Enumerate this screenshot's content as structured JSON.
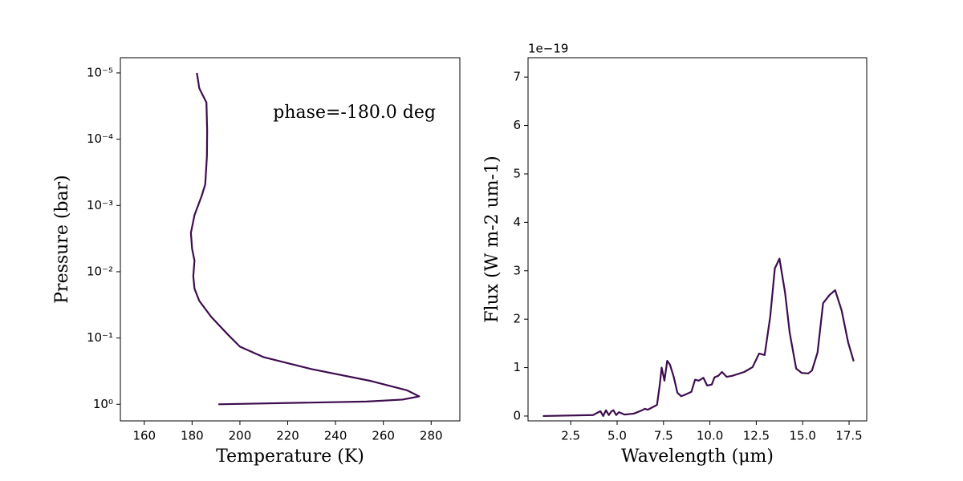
{
  "chart_data": [
    {
      "type": "line",
      "xlabel": "Temperature (K)",
      "ylabel": "Pressure (bar)",
      "annotation": "phase=-180.0 deg",
      "xlim": [
        150,
        292
      ],
      "ylim": [
        1.78,
        5.9e-06
      ],
      "ylog": true,
      "xticks": [
        160,
        180,
        200,
        220,
        240,
        260,
        280
      ],
      "yticks": [
        {
          "value": 1e-05,
          "label": "10⁻⁵"
        },
        {
          "value": 0.0001,
          "label": "10⁻⁴"
        },
        {
          "value": 0.001,
          "label": "10⁻³"
        },
        {
          "value": 0.01,
          "label": "10⁻²"
        },
        {
          "value": 0.1,
          "label": "10⁻¹"
        },
        {
          "value": 1,
          "label": "10⁰"
        }
      ],
      "x": [
        182,
        183,
        186,
        186.3,
        186.2,
        185.5,
        184,
        181,
        179.5,
        180,
        181,
        180.5,
        181,
        183,
        188,
        195,
        200,
        210,
        230,
        255,
        270,
        275,
        268,
        253,
        191
      ],
      "series": [
        {
          "color": "#3d0d4f",
          "values": [
            1e-05,
            1.7e-05,
            2.8e-05,
            7.4e-05,
            0.00018,
            0.00048,
            0.00072,
            0.0014,
            0.0026,
            0.0045,
            0.0068,
            0.0117,
            0.018,
            0.0275,
            0.048,
            0.089,
            0.135,
            0.195,
            0.295,
            0.447,
            0.617,
            0.76,
            0.85,
            0.91,
            1.0
          ]
        }
      ]
    },
    {
      "type": "line",
      "xlabel": "Wavelength (μm)",
      "ylabel": "Flux (W m-2 um-1)",
      "y_offset_text": "1e−19",
      "xlim": [
        0.2,
        18.45
      ],
      "ylim": [
        -0.1,
        7.4
      ],
      "ylog": false,
      "xticks": [
        2.5,
        {
          "value": 5,
          "label": "5.0"
        },
        7.5,
        {
          "value": 10,
          "label": "10.0"
        },
        12.5,
        {
          "value": 15,
          "label": "15.0"
        },
        17.5
      ],
      "yticks": [
        0,
        1,
        2,
        3,
        4,
        5,
        6,
        7
      ],
      "x": [
        1.0,
        3.7,
        4.0,
        4.1,
        4.25,
        4.4,
        4.55,
        4.7,
        4.8,
        4.95,
        5.1,
        5.4,
        5.9,
        6.35,
        6.5,
        6.65,
        7.0,
        7.15,
        7.3,
        7.4,
        7.55,
        7.7,
        7.85,
        8.05,
        8.25,
        8.45,
        8.6,
        9.0,
        9.2,
        9.4,
        9.65,
        9.85,
        10.1,
        10.25,
        10.45,
        10.65,
        10.9,
        11.2,
        11.85,
        12.3,
        12.65,
        12.95,
        13.25,
        13.5,
        13.75,
        14.05,
        14.3,
        14.65,
        14.95,
        15.3,
        15.5,
        15.8,
        16.1,
        16.45,
        16.75,
        17.1,
        17.45,
        17.75
      ],
      "series": [
        {
          "color": "#3d0d4f",
          "values": [
            0,
            0.02,
            0.08,
            0.1,
            0,
            0.12,
            0.02,
            0.1,
            0.12,
            0.02,
            0.08,
            0.03,
            0.05,
            0.12,
            0.15,
            0.13,
            0.2,
            0.23,
            0.65,
            1.0,
            0.73,
            1.14,
            1.06,
            0.81,
            0.48,
            0.41,
            0.43,
            0.5,
            0.75,
            0.73,
            0.79,
            0.63,
            0.65,
            0.8,
            0.83,
            0.91,
            0.81,
            0.83,
            0.91,
            1.01,
            1.29,
            1.26,
            2.05,
            3.05,
            3.25,
            2.55,
            1.72,
            0.98,
            0.89,
            0.88,
            0.94,
            1.31,
            2.33,
            2.5,
            2.6,
            2.18,
            1.52,
            1.13
          ]
        }
      ]
    }
  ]
}
